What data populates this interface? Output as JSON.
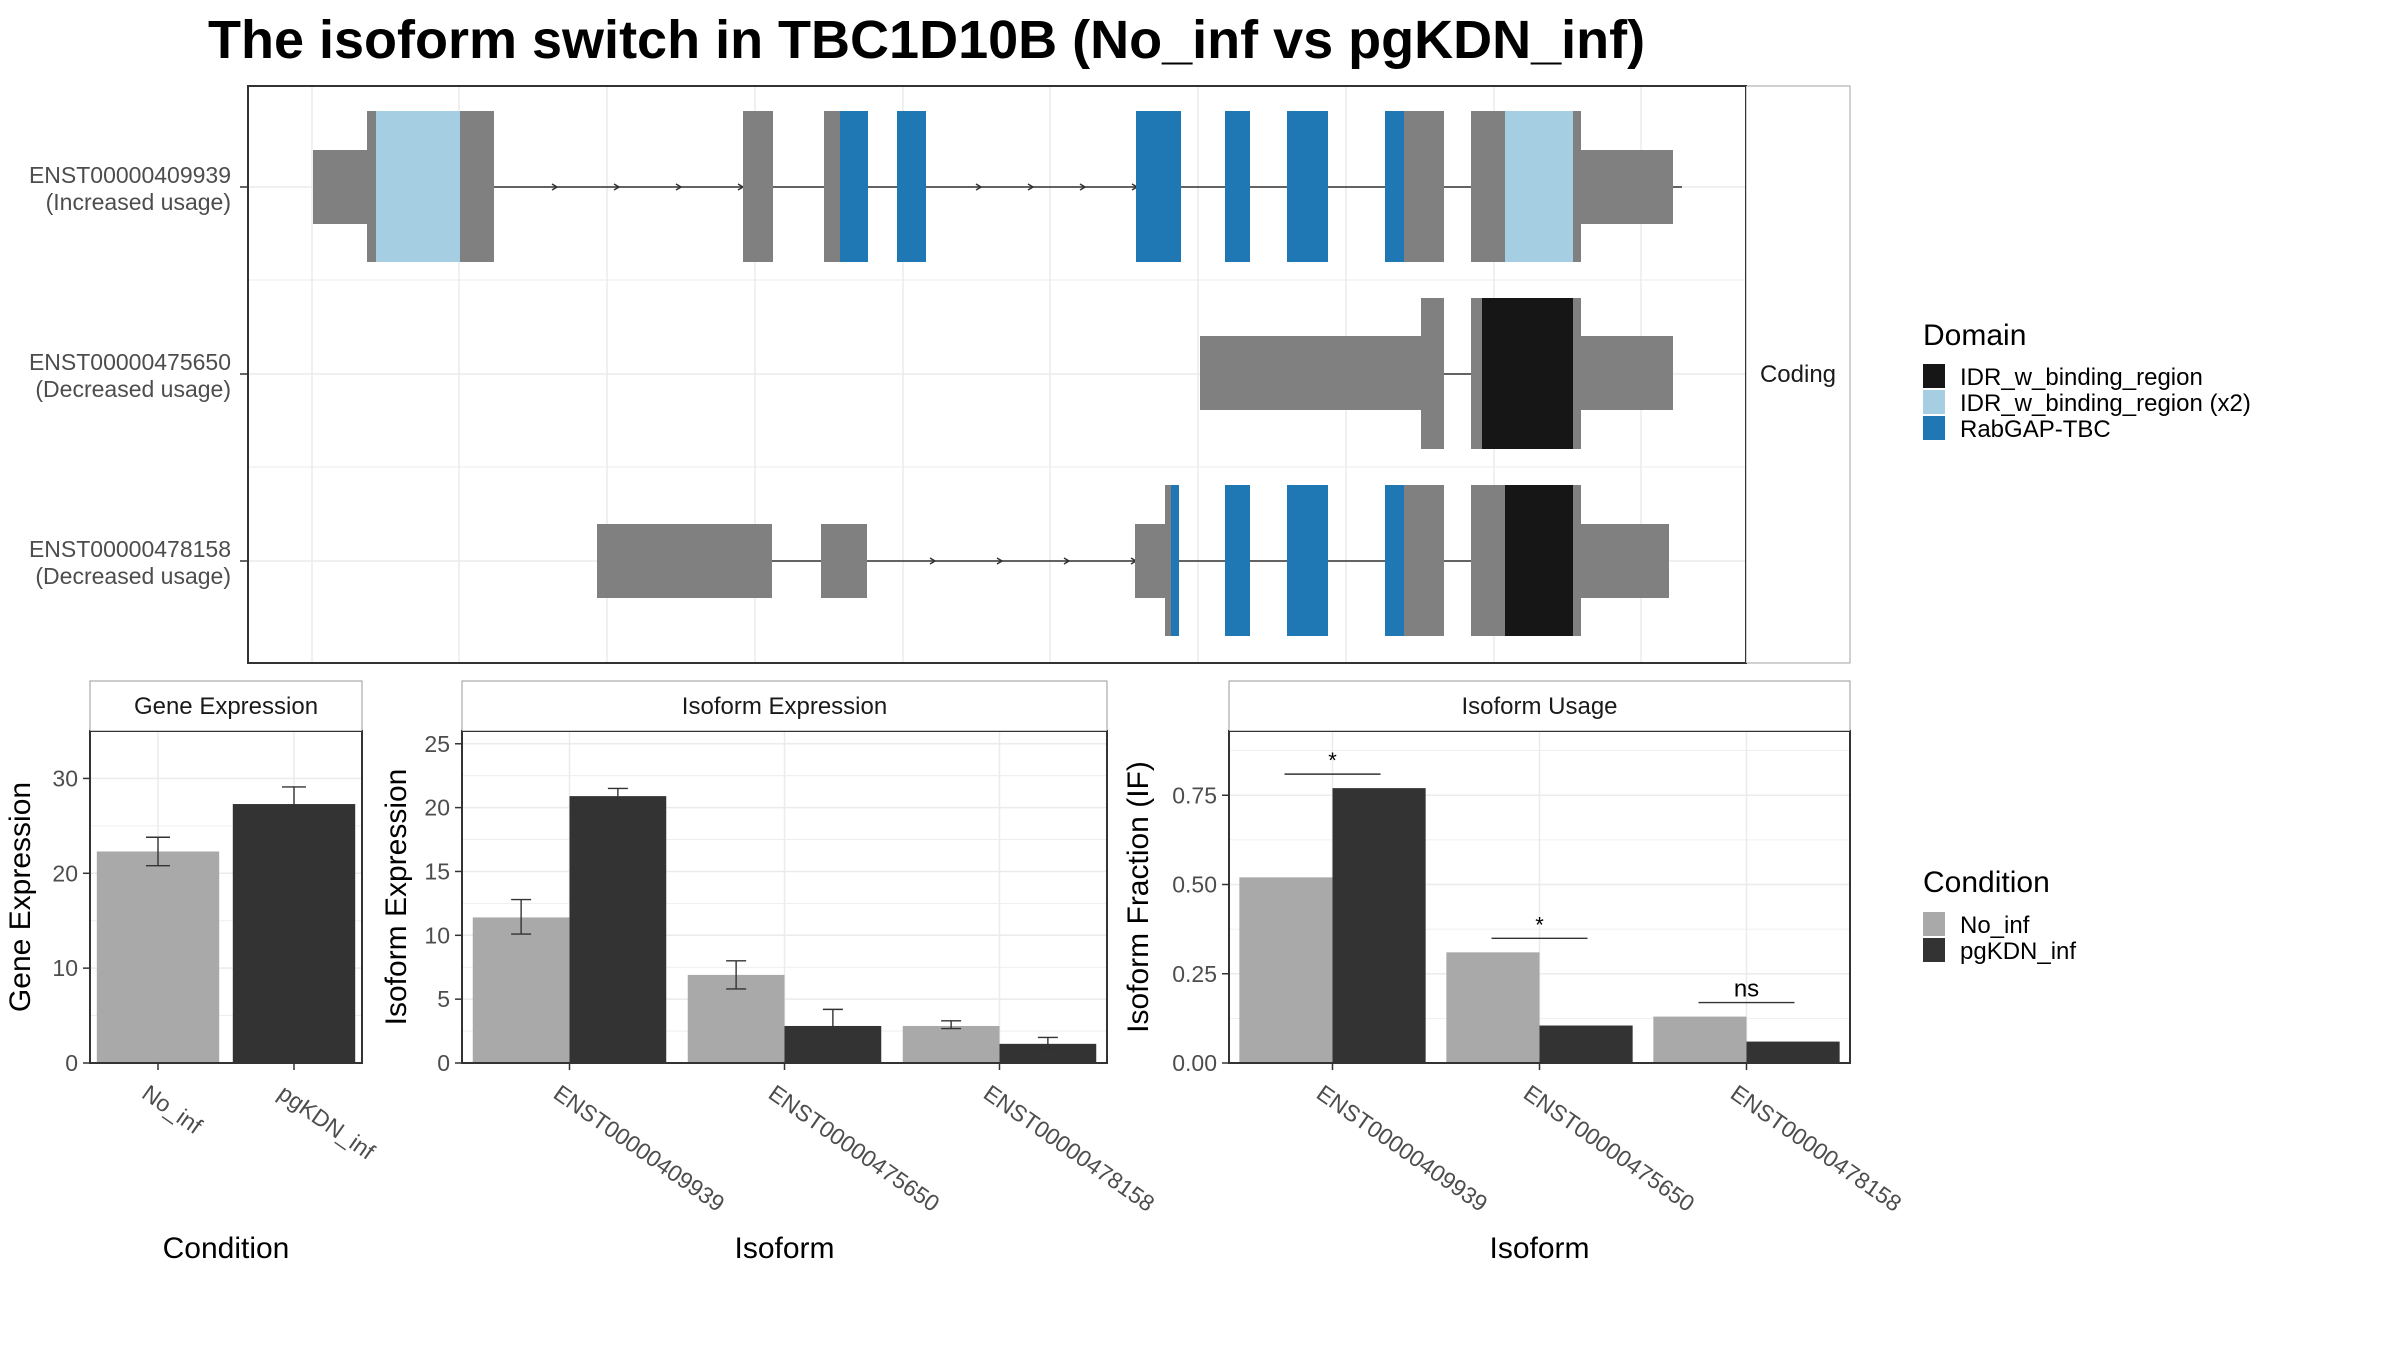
{
  "title": "The isoform switch in TBC1D10B (No_inf vs pgKDN_inf)",
  "colors": {
    "exon": "#808080",
    "idr": "#161616",
    "idr_x2": "#a6cee3",
    "rabgap": "#1f78b4",
    "no_inf": "#a9a9a9",
    "pgkdn_inf": "#333333",
    "grid": "#ebebeb",
    "strip_bg": "#ffffff"
  },
  "structure": {
    "strip_label": "Coding",
    "transcripts": [
      {
        "id": "ENST00000409939",
        "usage": "(Increased usage)"
      },
      {
        "id": "ENST00000475650",
        "usage": "(Decreased usage)"
      },
      {
        "id": "ENST00000478158",
        "usage": "(Decreased usage)"
      }
    ]
  },
  "legend_domain": {
    "title": "Domain",
    "items": [
      {
        "label": "IDR_w_binding_region",
        "color": "#161616"
      },
      {
        "label": "IDR_w_binding_region (x2)",
        "color": "#a6cee3"
      },
      {
        "label": "RabGAP-TBC",
        "color": "#1f78b4"
      }
    ]
  },
  "legend_condition": {
    "title": "Condition",
    "items": [
      {
        "label": "No_inf",
        "color": "#a9a9a9"
      },
      {
        "label": "pgKDN_inf",
        "color": "#333333"
      }
    ]
  },
  "chart_data": [
    {
      "type": "bar",
      "title": "Gene Expression",
      "xlabel": "Condition",
      "ylabel": "Gene Expression",
      "categories": [
        "No_inf",
        "pgKDN_inf"
      ],
      "values": [
        22.3,
        27.3
      ],
      "errors": [
        [
          20.8,
          23.8
        ],
        [
          25.6,
          29.1
        ]
      ],
      "ylim": [
        0,
        35
      ],
      "yticks": [
        0,
        10,
        20,
        30
      ]
    },
    {
      "type": "bar",
      "title": "Isoform Expression",
      "xlabel": "Isoform",
      "ylabel": "Isoform Expression",
      "categories": [
        "ENST00000409939",
        "ENST00000475650",
        "ENST00000478158"
      ],
      "series": [
        {
          "name": "No_inf",
          "values": [
            11.4,
            6.9,
            2.9
          ],
          "errors": [
            [
              10.1,
              12.8
            ],
            [
              5.8,
              8.0
            ],
            [
              2.7,
              3.3
            ]
          ]
        },
        {
          "name": "pgKDN_inf",
          "values": [
            20.9,
            2.9,
            1.5
          ],
          "errors": [
            [
              20.3,
              21.5
            ],
            [
              1.6,
              4.2
            ],
            [
              1.1,
              2.0
            ]
          ]
        }
      ],
      "ylim": [
        0,
        26
      ],
      "yticks": [
        0,
        5,
        10,
        15,
        20,
        25
      ]
    },
    {
      "type": "bar",
      "title": "Isoform Usage",
      "xlabel": "Isoform",
      "ylabel": "Isoform Fraction (IF)",
      "categories": [
        "ENST00000409939",
        "ENST00000475650",
        "ENST00000478158"
      ],
      "series": [
        {
          "name": "No_inf",
          "values": [
            0.52,
            0.31,
            0.13
          ]
        },
        {
          "name": "pgKDN_inf",
          "values": [
            0.77,
            0.105,
            0.06
          ]
        }
      ],
      "significance": [
        "*",
        "*",
        "ns"
      ],
      "ylim": [
        0,
        0.93
      ],
      "yticks": [
        "0.00",
        "0.25",
        "0.50",
        "0.75"
      ]
    }
  ]
}
